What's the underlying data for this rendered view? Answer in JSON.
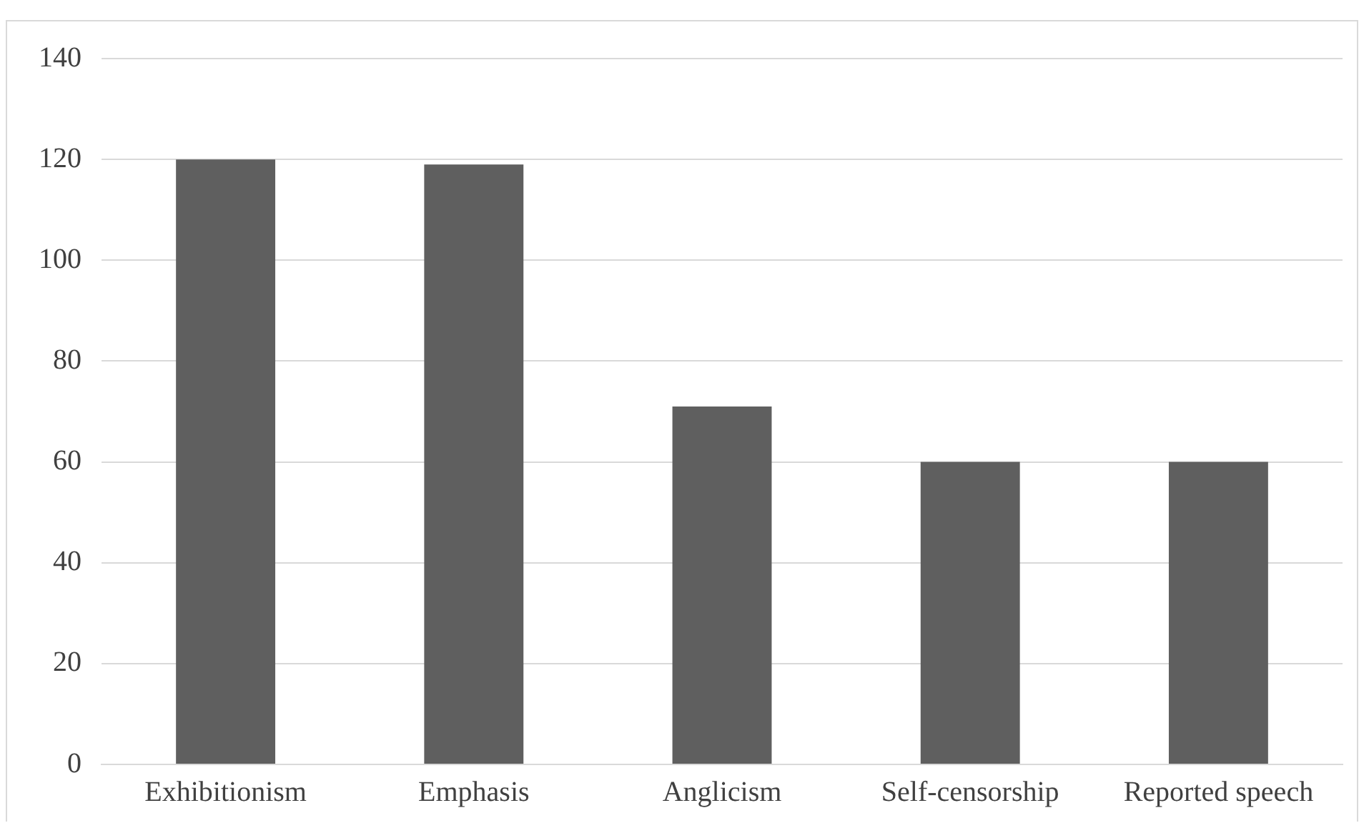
{
  "chart_data": {
    "type": "bar",
    "categories": [
      "Exhibitionism",
      "Emphasis",
      "Anglicism",
      "Self-censorship",
      "Reported speech"
    ],
    "values": [
      120,
      119,
      71,
      60,
      60
    ],
    "color": "#5f5f5f",
    "ylim": [
      0,
      140
    ],
    "yticks": [
      0,
      20,
      40,
      60,
      80,
      100,
      120,
      140
    ],
    "grid": "y",
    "legend": false
  }
}
